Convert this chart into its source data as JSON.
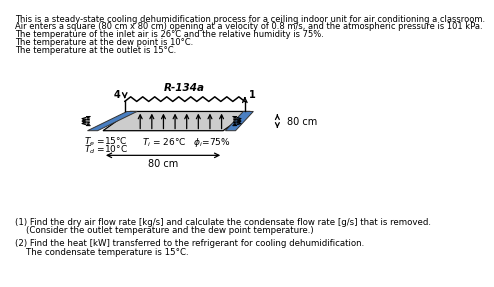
{
  "text_lines": [
    "This is a steady-state cooling dehumidification process for a ceiling indoor unit for air conditioning a classroom.",
    "Air enters a square (80 cm x 80 cm) opening at a velocity of 0.8 m/s, and the atmospheric pressure is 101 kPa.",
    "The temperature of the inlet air is 26°C and the relative humidity is 75%.",
    "The temperature at the dew point is 10°C.",
    "The temperature at the outlet is 15°C."
  ],
  "q1_text": "(1) Find the dry air flow rate [kg/s] and calculate the condensate flow rate [g/s] that is removed.",
  "q1_sub": "    (Consider the outlet temperature and the dew point temperature.)",
  "q2_text": "(2) Find the heat [kW] transferred to the refrigerant for cooling dehumidification.",
  "q2_sub": "    The condensate temperature is 15°C.",
  "bg_color": "#ffffff",
  "text_color": "#000000"
}
